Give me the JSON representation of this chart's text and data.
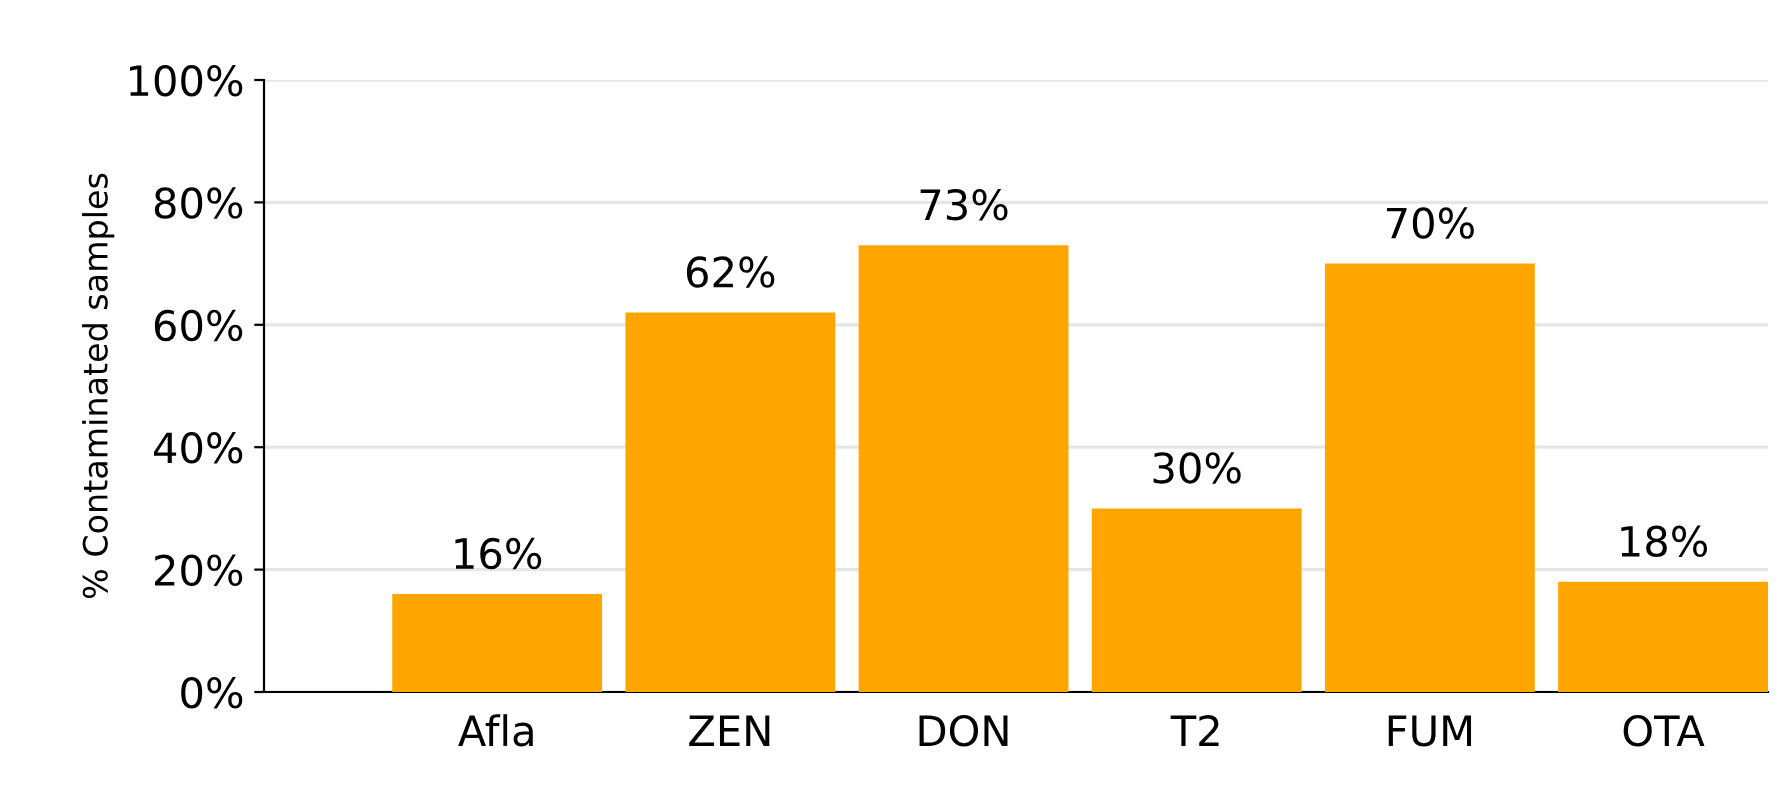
{
  "chart_data": {
    "type": "bar",
    "ylabel": "% Contaminated samples",
    "categories": [
      "Afla",
      "ZEN",
      "DON",
      "T2",
      "FUM",
      "OTA"
    ],
    "values": [
      16,
      62,
      73,
      30,
      70,
      18
    ],
    "value_labels": [
      "16%",
      "62%",
      "73%",
      "30%",
      "70%",
      "18%"
    ],
    "color": "#ffa500",
    "ylim": [
      0,
      100
    ],
    "yticks": [
      {
        "value": 0,
        "label": "0%"
      },
      {
        "value": 20,
        "label": "20%"
      },
      {
        "value": 40,
        "label": "40%"
      },
      {
        "value": 60,
        "label": "60%"
      },
      {
        "value": 80,
        "label": "80%"
      },
      {
        "value": 100,
        "label": "100%"
      }
    ],
    "grid": "y"
  }
}
